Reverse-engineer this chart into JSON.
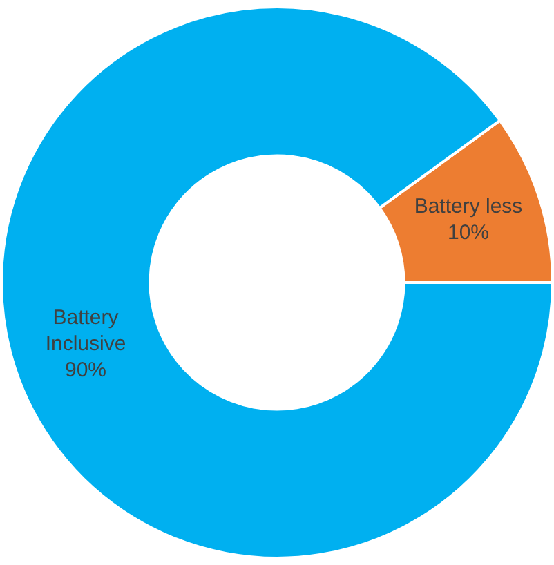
{
  "chart_data": {
    "type": "donut",
    "categories": [
      "Battery less",
      "Battery Inclusive"
    ],
    "values": [
      10,
      90
    ],
    "colors": [
      "#ed7d31",
      "#00b0f0"
    ],
    "value_labels": [
      "10%",
      "90%"
    ],
    "legend": false
  }
}
